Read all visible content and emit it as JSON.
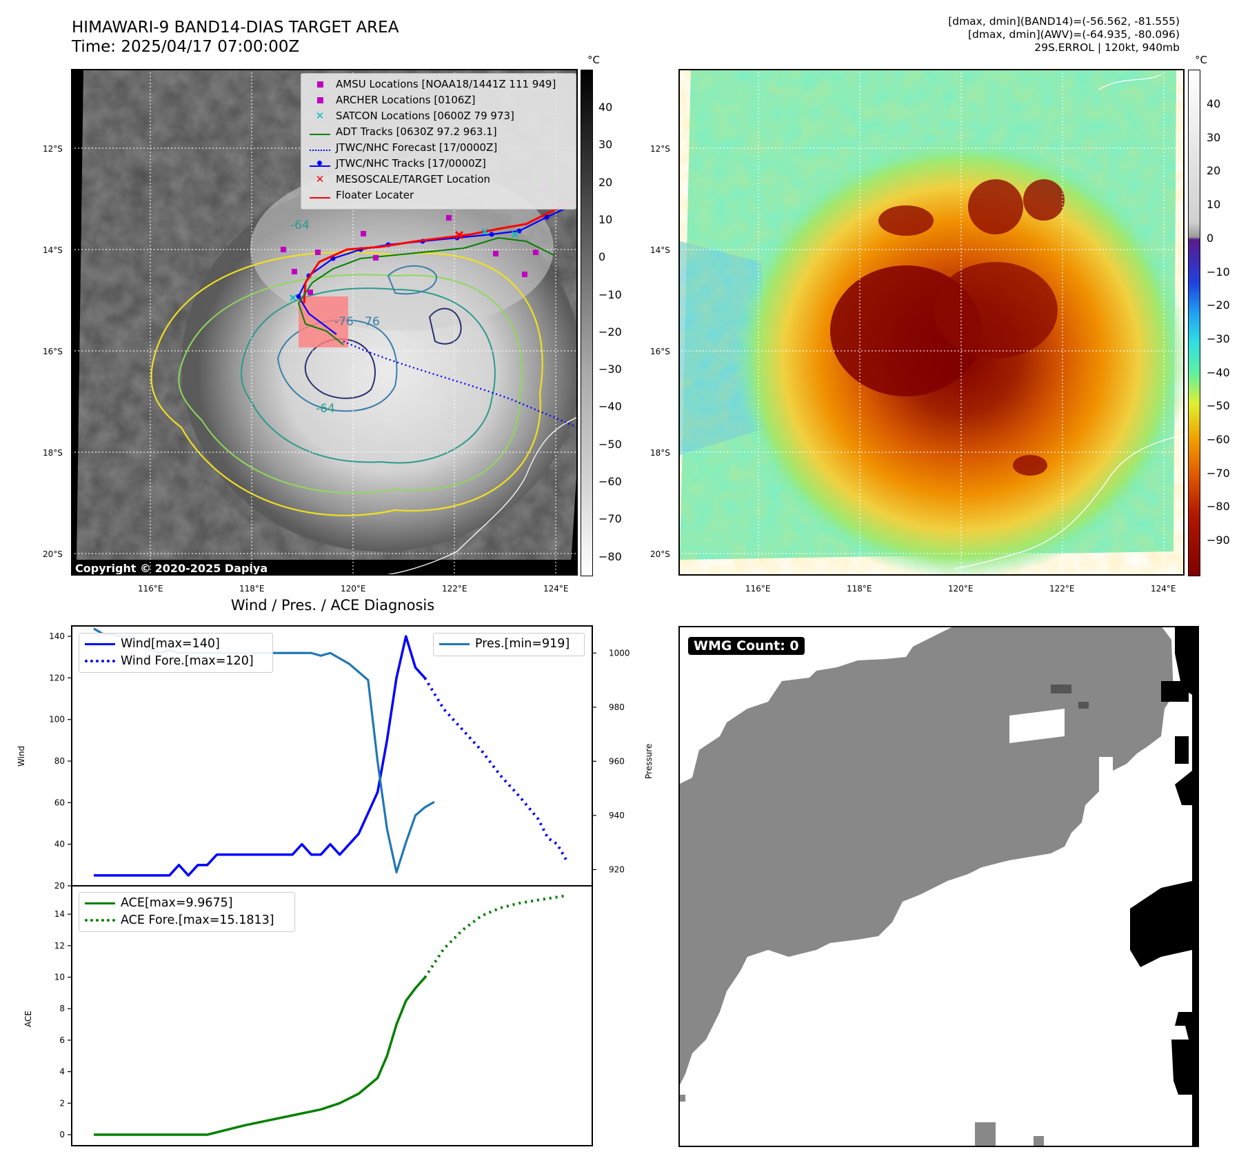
{
  "header": {
    "title_line1": "HIMAWARI-9 BAND14-DIAS TARGET AREA",
    "title_line2": "Time: 2025/04/17 07:00:00Z",
    "stats_line1": "[dmax, dmin](BAND14)=(-56.562, -81.555)",
    "stats_line2": "[dmax, dmin](AWV)=(-64.935, -80.096)",
    "stats_line3": "29S.ERROL | 120kt, 940mb"
  },
  "map": {
    "lon_ticks": [
      "116°E",
      "118°E",
      "120°E",
      "122°E",
      "124°E"
    ],
    "lat_ticks": [
      "12°S",
      "14°S",
      "16°S",
      "18°S",
      "20°S"
    ],
    "copyright": "Copyright © 2020-2025 Dapiya",
    "contour_labels": [
      "-64",
      "-64",
      "-76",
      "-76"
    ],
    "colorbar_unit": "°C",
    "gray_cbar_ticks": [
      "40",
      "30",
      "20",
      "10",
      "0",
      "−10",
      "−20",
      "−30",
      "−40",
      "−50",
      "−60",
      "−70",
      "−80"
    ],
    "color_cbar_ticks": [
      "40",
      "30",
      "20",
      "10",
      "0",
      "−10",
      "−20",
      "−30",
      "−40",
      "−50",
      "−60",
      "−70",
      "−80",
      "−90"
    ],
    "legend": [
      {
        "label": "AMSU Locations [NOAA18/1441Z 111 949]",
        "color": "#c000c0"
      },
      {
        "label": "ARCHER Locations [0106Z]",
        "color": "#c000c0"
      },
      {
        "label": "SATCON Locations [0600Z 79 973]",
        "color": "#00bfbf"
      },
      {
        "label": "ADT Tracks [0630Z 97.2 963.1]",
        "color": "#008000"
      },
      {
        "label": "JTWC/NHC Forecast [17/0000Z]",
        "color": "#0000ff"
      },
      {
        "label": "JTWC/NHC Tracks [17/0000Z]",
        "color": "#0000ff"
      },
      {
        "label": "MESOSCALE/TARGET Location",
        "color": "#ff0000"
      },
      {
        "label": "Floater Locater",
        "color": "#ff0000"
      }
    ]
  },
  "diagnosis": {
    "title": "Wind / Pres. / ACE Diagnosis",
    "wind_axis_label": "Wind",
    "pres_axis_label": "Pressure",
    "ace_axis_label": "ACE",
    "legend_wind": "Wind[max=140]",
    "legend_wind_fore": "Wind Fore.[max=120]",
    "legend_pres": "Pres.[min=919]",
    "legend_ace": "ACE[max=9.9675]",
    "legend_ace_fore": "ACE Fore.[max=15.1813]"
  },
  "wmg": {
    "label": "WMG Count: 0"
  },
  "chart_data": [
    {
      "type": "line",
      "title": "Wind / Pres. / ACE Diagnosis",
      "ylabel": "Wind",
      "ylim": [
        20,
        145
      ],
      "yticks": [
        20,
        40,
        60,
        80,
        100,
        120,
        140
      ],
      "x": [
        0,
        1,
        2,
        3,
        4,
        5,
        6,
        7,
        8,
        9,
        10,
        11,
        12,
        13,
        14,
        15,
        16,
        17,
        18,
        19,
        20,
        21,
        22,
        23,
        24,
        25,
        26,
        27,
        28,
        29,
        30,
        31,
        32,
        33,
        34,
        35,
        36,
        37,
        38,
        39,
        40,
        41,
        42,
        43,
        44,
        45,
        46,
        47,
        48,
        49,
        50
      ],
      "series": [
        {
          "name": "Wind[max=140]",
          "color": "#0000ff",
          "style": "solid",
          "x": [
            0,
            1,
            2,
            3,
            4,
            5,
            6,
            7,
            8,
            9,
            10,
            11,
            12,
            13,
            14,
            15,
            16,
            17,
            18,
            19,
            20,
            21,
            22,
            23,
            24,
            25,
            26,
            27,
            28,
            29,
            30,
            31,
            32,
            33,
            34,
            35
          ],
          "values": [
            25,
            25,
            25,
            25,
            25,
            25,
            25,
            25,
            25,
            30,
            25,
            30,
            30,
            35,
            35,
            35,
            35,
            35,
            35,
            35,
            35,
            35,
            40,
            35,
            35,
            40,
            35,
            40,
            45,
            55,
            65,
            90,
            120,
            140,
            125,
            120
          ]
        },
        {
          "name": "Wind Fore.[max=120]",
          "color": "#0000ff",
          "style": "dotted",
          "x": [
            35,
            37,
            39,
            41,
            43,
            45,
            47,
            48,
            49,
            50
          ],
          "values": [
            120,
            105,
            95,
            85,
            73,
            63,
            52,
            43,
            40,
            32
          ]
        },
        {
          "name": "Pres.[min=919]",
          "color": "#1f77b4",
          "style": "solid",
          "axis": "right",
          "ylim": [
            914,
            1010
          ],
          "yticks": [
            920,
            940,
            960,
            980,
            1000
          ],
          "x": [
            0,
            1,
            2,
            3,
            4,
            5,
            6,
            7,
            8,
            9,
            10,
            11,
            12,
            13,
            14,
            15,
            16,
            17,
            18,
            19,
            20,
            21,
            22,
            23,
            24,
            25,
            26,
            27,
            28,
            29,
            30,
            31,
            32,
            33,
            34,
            35,
            36
          ],
          "values": [
            1009,
            1007,
            1007,
            1006,
            1006,
            1003,
            1001,
            1000,
            1001,
            1000,
            1000,
            1000,
            1000,
            1000,
            1000,
            1000,
            1000,
            1000,
            1000,
            1000,
            1000,
            1000,
            1000,
            1000,
            999,
            1000,
            998,
            996,
            993,
            990,
            960,
            935,
            919,
            930,
            940,
            943,
            945
          ]
        }
      ]
    },
    {
      "type": "line",
      "ylabel": "ACE",
      "ylim": [
        -0.7,
        15.8
      ],
      "yticks": [
        0,
        2,
        4,
        6,
        8,
        10,
        12,
        14
      ],
      "series": [
        {
          "name": "ACE[max=9.9675]",
          "color": "#008000",
          "style": "solid",
          "x": [
            0,
            12,
            16,
            20,
            24,
            26,
            28,
            30,
            31,
            32,
            33,
            34,
            35
          ],
          "values": [
            0,
            0,
            0.6,
            1.1,
            1.6,
            2.0,
            2.6,
            3.6,
            5.0,
            7.0,
            8.5,
            9.3,
            9.97
          ]
        },
        {
          "name": "ACE Fore.[max=15.1813]",
          "color": "#008000",
          "style": "dotted",
          "x": [
            35,
            37,
            39,
            41,
            43,
            45,
            47,
            50
          ],
          "values": [
            9.97,
            11.8,
            13.0,
            13.9,
            14.4,
            14.7,
            14.9,
            15.18
          ]
        }
      ]
    }
  ]
}
